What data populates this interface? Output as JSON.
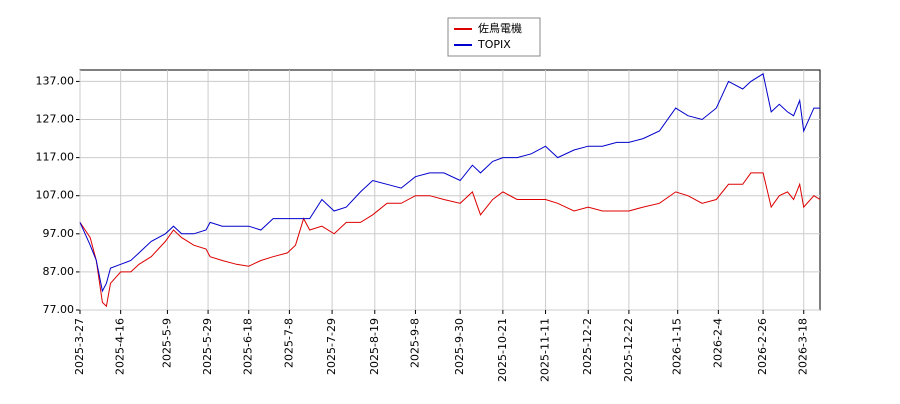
{
  "chart_data": {
    "type": "line",
    "x": [
      "2025-3-27",
      "2025-4-1",
      "2025-4-4",
      "2025-4-7",
      "2025-4-9",
      "2025-4-11",
      "2025-4-16",
      "2025-4-21",
      "2025-4-25",
      "2025-5-1",
      "2025-5-8",
      "2025-5-12",
      "2025-5-16",
      "2025-5-22",
      "2025-5-28",
      "2025-5-30",
      "2025-6-5",
      "2025-6-12",
      "2025-6-18",
      "2025-6-24",
      "2025-6-30",
      "2025-7-7",
      "2025-7-11",
      "2025-7-15",
      "2025-7-18",
      "2025-7-24",
      "2025-7-30",
      "2025-8-5",
      "2025-8-12",
      "2025-8-18",
      "2025-8-25",
      "2025-9-1",
      "2025-9-8",
      "2025-9-15",
      "2025-9-22",
      "2025-9-30",
      "2025-10-6",
      "2025-10-10",
      "2025-10-16",
      "2025-10-21",
      "2025-10-28",
      "2025-11-4",
      "2025-11-11",
      "2025-11-17",
      "2025-11-25",
      "2025-12-2",
      "2025-12-9",
      "2025-12-16",
      "2025-12-22",
      "2025-12-29",
      "2026-1-6",
      "2026-1-14",
      "2026-1-20",
      "2026-1-27",
      "2026-2-3",
      "2026-2-9",
      "2026-2-16",
      "2026-2-20",
      "2026-2-26",
      "2026-3-2",
      "2026-3-6",
      "2026-3-10",
      "2026-3-13",
      "2026-3-16",
      "2026-3-18",
      "2026-3-23",
      "2026-3-26"
    ],
    "series": [
      {
        "name": "佐鳥電機",
        "color": "#dd0000",
        "values": [
          100,
          96,
          90,
          79,
          78,
          84,
          87,
          87,
          89,
          91,
          95,
          98,
          96,
          94,
          93,
          91,
          90,
          89,
          88.5,
          90,
          91,
          92,
          94,
          101,
          98,
          99,
          97,
          100,
          100,
          102,
          105,
          105,
          107,
          107,
          106,
          105,
          108,
          102,
          106,
          108,
          106,
          106,
          106,
          105,
          103,
          104,
          103,
          103,
          103,
          104,
          105,
          108,
          107,
          105,
          106,
          110,
          110,
          113,
          113,
          104,
          107,
          108,
          106,
          110,
          104,
          107,
          106
        ]
      },
      {
        "name": "TOPIX",
        "color": "#0000cc",
        "values": [
          100,
          94,
          90,
          82,
          84,
          88,
          89,
          90,
          92,
          95,
          97,
          99,
          97,
          97,
          98,
          100,
          99,
          99,
          99,
          98,
          101,
          101,
          101,
          101,
          101,
          106,
          103,
          104,
          108,
          111,
          110,
          109,
          112,
          113,
          113,
          111,
          115,
          113,
          116,
          117,
          117,
          118,
          120,
          117,
          119,
          120,
          120,
          121,
          121,
          122,
          124,
          130,
          128,
          127,
          130,
          137,
          135,
          137,
          139,
          129,
          131,
          129,
          128,
          132,
          124,
          130,
          130
        ]
      }
    ],
    "xlim": [
      "2025-3-27",
      "2026-3-26"
    ],
    "xticks": [
      "2025-3-27",
      "2025-4-16",
      "2025-5-9",
      "2025-5-29",
      "2025-6-18",
      "2025-7-8",
      "2025-7-29",
      "2025-8-19",
      "2025-9-8",
      "2025-9-30",
      "2025-10-21",
      "2025-11-11",
      "2025-12-2",
      "2025-12-22",
      "2026-1-15",
      "2026-2-4",
      "2026-2-26",
      "2026-3-18"
    ],
    "ylim": [
      77,
      140
    ],
    "yticks": [
      {
        "value": 77,
        "label": "77.00"
      },
      {
        "value": 87,
        "label": "87.00"
      },
      {
        "value": 97,
        "label": "97.00"
      },
      {
        "value": 107,
        "label": "107.00"
      },
      {
        "value": 117,
        "label": "117.00"
      },
      {
        "value": 127,
        "label": "127.00"
      },
      {
        "value": 137,
        "label": "137.00"
      }
    ],
    "grid": true,
    "legend": "top"
  }
}
